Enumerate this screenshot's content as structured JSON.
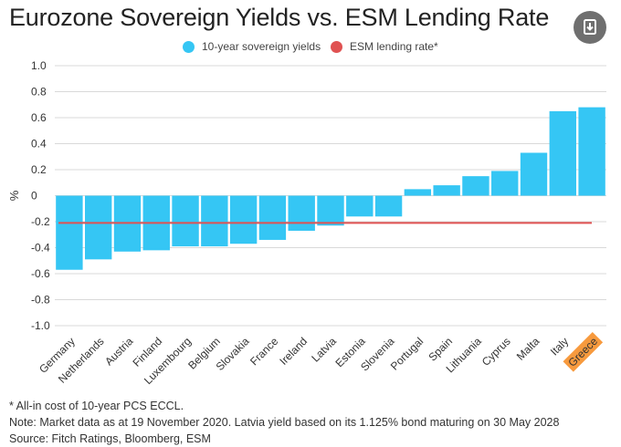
{
  "title": "Eurozone Sovereign Yields vs. ESM Lending Rate",
  "download_icon": "download-icon",
  "legend": [
    {
      "label": "10-year sovereign yields",
      "color": "#35c6f4"
    },
    {
      "label": "ESM lending rate*",
      "color": "#e05252"
    }
  ],
  "chart_data": {
    "type": "bar",
    "ylabel": "%",
    "ylim": [
      -1.0,
      1.0
    ],
    "yticks": [
      1.0,
      0.8,
      0.6,
      0.4,
      0.2,
      0,
      -0.2,
      -0.4,
      -0.6,
      -0.8,
      -1.0
    ],
    "ytick_labels": [
      "1.0",
      "0.8",
      "0.6",
      "0.4",
      "0.2",
      "0",
      "-0.2",
      "-0.4",
      "-0.6",
      "-0.8",
      "-1.0"
    ],
    "grid": true,
    "categories": [
      "Germany",
      "Netherlands",
      "Austria",
      "Finland",
      "Luxembourg",
      "Belgium",
      "Slovakia",
      "France",
      "Ireland",
      "Latvia",
      "Estonia",
      "Slovenia",
      "Portugal",
      "Spain",
      "Lithuania",
      "Cyprus",
      "Malta",
      "Italy",
      "Greece"
    ],
    "highlighted_category": "Greece",
    "series": [
      {
        "name": "10-year sovereign yields",
        "color": "#35c6f4",
        "values": [
          -0.57,
          -0.49,
          -0.43,
          -0.42,
          -0.39,
          -0.39,
          -0.37,
          -0.34,
          -0.27,
          -0.23,
          -0.16,
          -0.16,
          0.05,
          0.08,
          0.15,
          0.19,
          0.33,
          0.65,
          0.68
        ]
      },
      {
        "name": "ESM lending rate*",
        "color": "#e05252",
        "type": "line",
        "value": -0.21
      }
    ]
  },
  "notes": [
    "* All-in cost of 10-year PCS ECCL.",
    "Note: Market data as at 19 November 2020.  Latvia yield based on its 1.125% bond maturing on 30 May 2028",
    "Source: Fitch Ratings, Bloomberg, ESM"
  ]
}
